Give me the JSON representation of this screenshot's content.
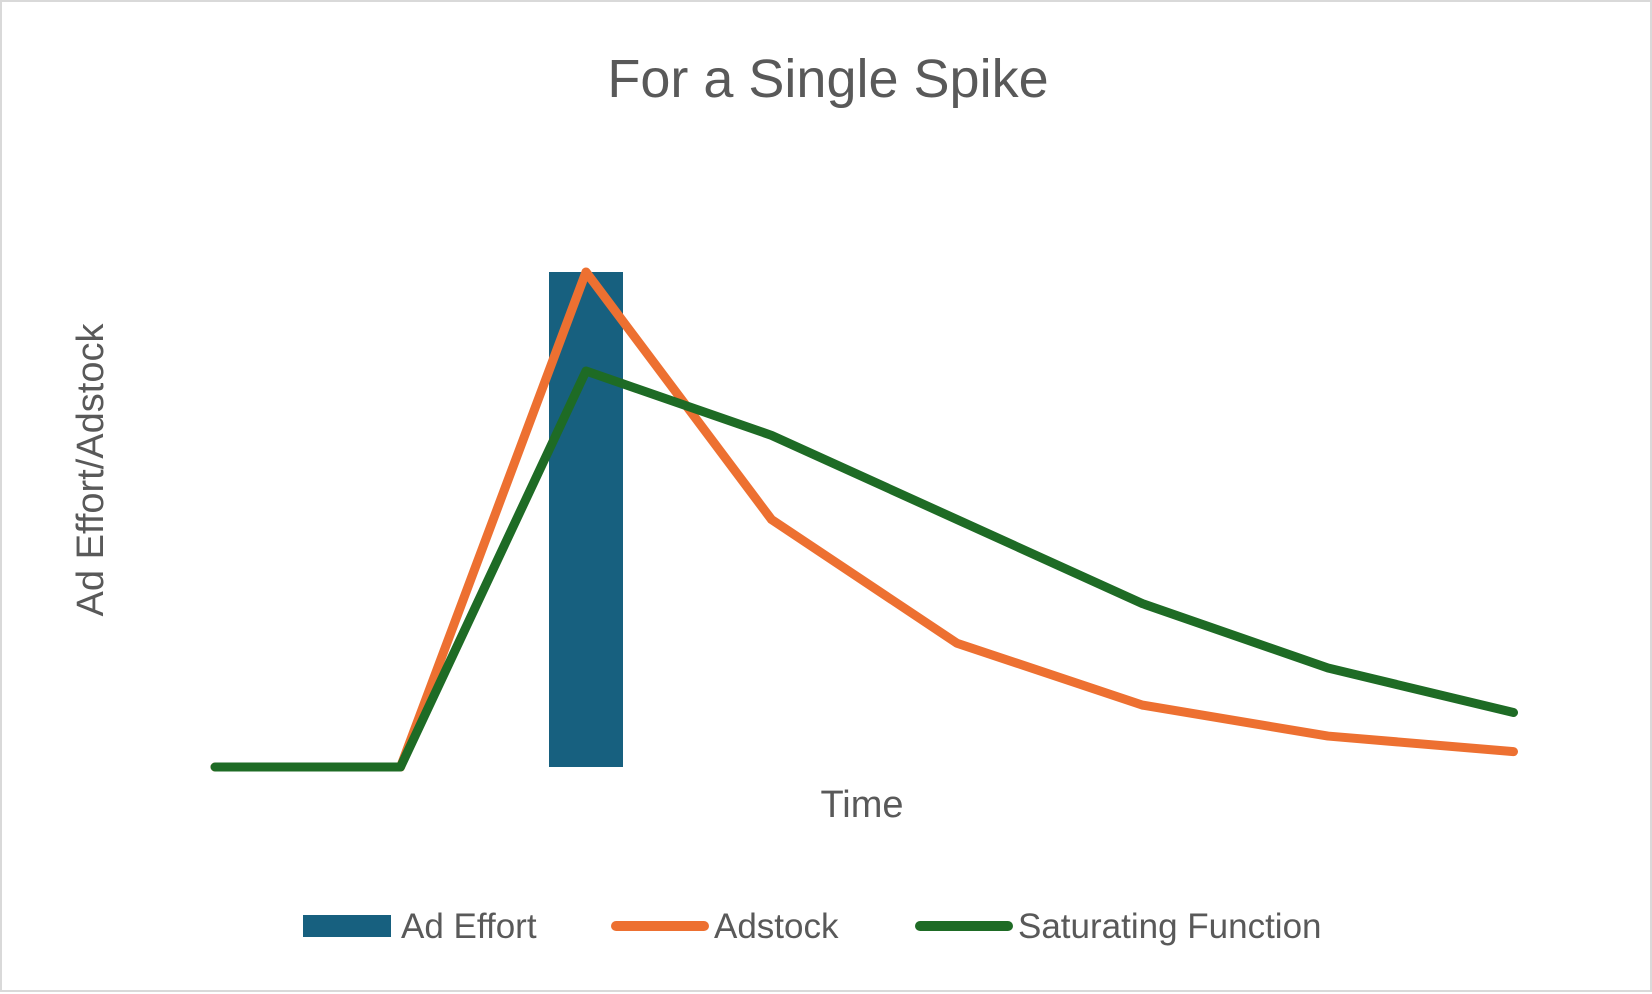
{
  "chart_data": {
    "type": "bar+line",
    "title": "For a Single Spike",
    "xlabel": "Time",
    "ylabel": "Ad Effort/Adstock",
    "x": [
      0,
      1,
      2,
      3,
      4,
      5,
      6,
      7
    ],
    "ylim": [
      0,
      100
    ],
    "grid": false,
    "axis_ticks_shown": false,
    "legend_position": "bottom",
    "series": [
      {
        "name": "Ad Effort",
        "kind": "bar",
        "color": "#17607f",
        "values": [
          0,
          0,
          100,
          0,
          0,
          0,
          0,
          0
        ]
      },
      {
        "name": "Adstock",
        "kind": "line",
        "color": "#ed7031",
        "values": [
          0,
          0,
          100,
          50,
          25,
          12.5,
          6.25,
          3.1
        ]
      },
      {
        "name": "Saturating Function",
        "kind": "line",
        "color": "#1e6b25",
        "values": [
          0,
          0,
          80,
          67,
          50,
          33,
          20,
          11
        ]
      }
    ]
  }
}
